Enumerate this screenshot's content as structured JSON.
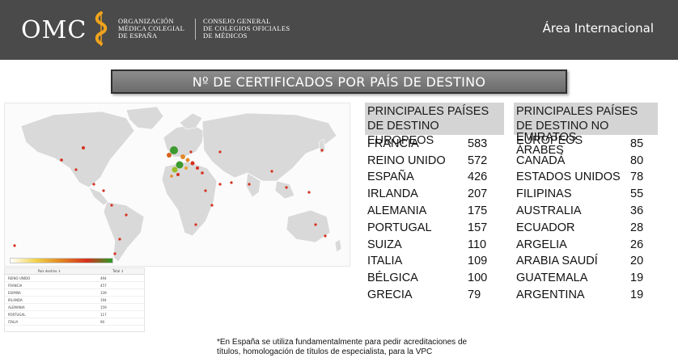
{
  "header": {
    "logo": "OMC",
    "org_lines": [
      "ORGANIZACIÓN",
      "MÉDICA COLEGIAL",
      "DE ESPAÑA"
    ],
    "council_lines": [
      "CONSEJO GENERAL",
      "DE COLEGIOS OFICIALES",
      "DE MÉDICOS"
    ],
    "area": "Área Internacional",
    "accent_color": "#f0a31c",
    "background_color": "#4a4a4a"
  },
  "title": "Nº DE CERTIFICADOS POR PAÍS DE DESTINO",
  "map": {
    "icon": "world-map-icon",
    "mini_table": {
      "headers": [
        "País destino ⇕",
        "Total ⇕"
      ],
      "rows": [
        {
          "country": "REINO UNIDO",
          "total": "494"
        },
        {
          "country": "FRANCIA",
          "total": "457"
        },
        {
          "country": "ESPAÑA",
          "total": "339"
        },
        {
          "country": "IRLANDA",
          "total": "194"
        },
        {
          "country": "ALEMANIA",
          "total": "159"
        },
        {
          "country": "PORTUGAL",
          "total": "117"
        },
        {
          "country": "ITALIA",
          "total": "90"
        }
      ]
    }
  },
  "european_table": {
    "heading": "PRINCIPALES PAÍSES DE DESTINO EUROPEOS",
    "rows": [
      {
        "country": "FRANCIA",
        "value": "583"
      },
      {
        "country": "REINO UNIDO",
        "value": "572"
      },
      {
        "country": "ESPAÑA",
        "value": "426"
      },
      {
        "country": "IRLANDA",
        "value": "207"
      },
      {
        "country": "ALEMANIA",
        "value": "175"
      },
      {
        "country": "PORTUGAL",
        "value": "157"
      },
      {
        "country": "SUIZA",
        "value": "110"
      },
      {
        "country": "ITALIA",
        "value": "109"
      },
      {
        "country": "BÉLGICA",
        "value": "100"
      },
      {
        "country": "GRECIA",
        "value": "79"
      }
    ]
  },
  "non_european_table": {
    "heading": "PRINCIPALES PAÍSES DE DESTINO NO EUROPEOS",
    "rows": [
      {
        "country": "EMIRATOS ÁRABES",
        "value": "85"
      },
      {
        "country": "CANADÁ",
        "value": "80"
      },
      {
        "country": "ESTADOS UNIDOS",
        "value": "78"
      },
      {
        "country": "FILIPINAS",
        "value": "55"
      },
      {
        "country": "AUSTRALIA",
        "value": "36"
      },
      {
        "country": "ECUADOR",
        "value": "28"
      },
      {
        "country": "ARGELIA",
        "value": "26"
      },
      {
        "country": "ARABIA SAUDÍ",
        "value": "20"
      },
      {
        "country": "GUATEMALA",
        "value": "19"
      },
      {
        "country": "ARGENTINA",
        "value": "19"
      }
    ]
  },
  "footnote": "*En España se utiliza fundamentalmente para pedir acreditaciones de títulos, homologación de títulos de especialista, para la VPC"
}
